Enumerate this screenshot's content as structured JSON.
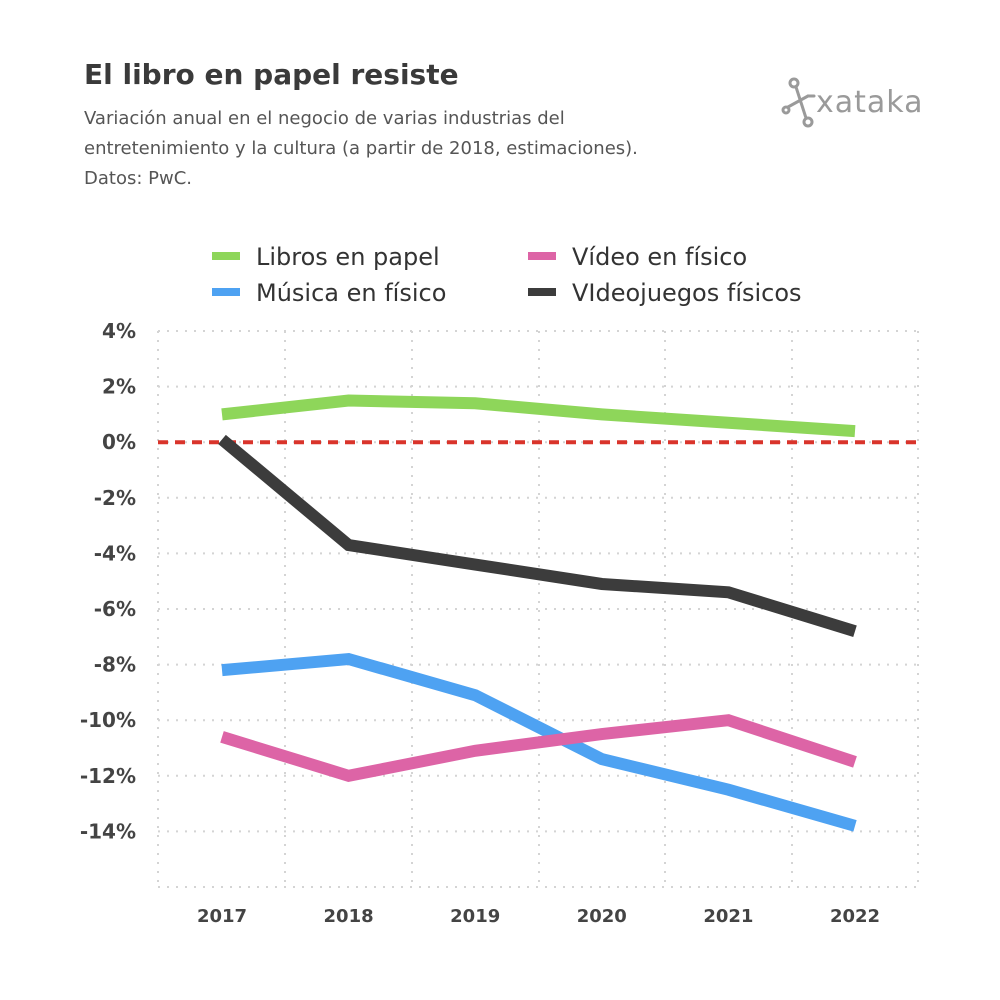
{
  "header": {
    "title": "El libro en papel resiste",
    "subtitle_lines": [
      "Variación anual en el negocio de varias industrias del",
      "entretenimiento y la cultura (a partir de 2018, estimaciones).",
      "Datos: PwC."
    ],
    "logo_text": "xataka"
  },
  "chart_data": {
    "type": "line",
    "title": "El libro en papel resiste",
    "x": [
      "2017",
      "2018",
      "2019",
      "2020",
      "2021",
      "2022"
    ],
    "yticks": [
      "4%",
      "2%",
      "0%",
      "-2%",
      "-4%",
      "-6%",
      "-8%",
      "-10%",
      "-12%",
      "-14%"
    ],
    "ylim": [
      -16,
      4
    ],
    "unit": "%",
    "grid": true,
    "legend_position": "top",
    "reference_line": {
      "value": 0,
      "color": "#d9342b",
      "style": "dashed"
    },
    "series": [
      {
        "name": "Libros en papel",
        "color": "#8ed65a",
        "values": [
          1.0,
          1.5,
          1.4,
          1.0,
          0.7,
          0.4
        ]
      },
      {
        "name": "Música en físico",
        "color": "#4ea2f2",
        "values": [
          -8.2,
          -7.8,
          -9.1,
          -11.4,
          -12.5,
          -13.8
        ]
      },
      {
        "name": "Vídeo en físico",
        "color": "#dd64a6",
        "values": [
          -10.6,
          -12.0,
          -11.1,
          -10.5,
          -10.0,
          -11.5
        ]
      },
      {
        "name": "VIdeojuegos físicos",
        "color": "#3c3c3c",
        "values": [
          0.1,
          -3.7,
          -4.4,
          -5.1,
          -5.4,
          -6.8
        ]
      }
    ]
  }
}
